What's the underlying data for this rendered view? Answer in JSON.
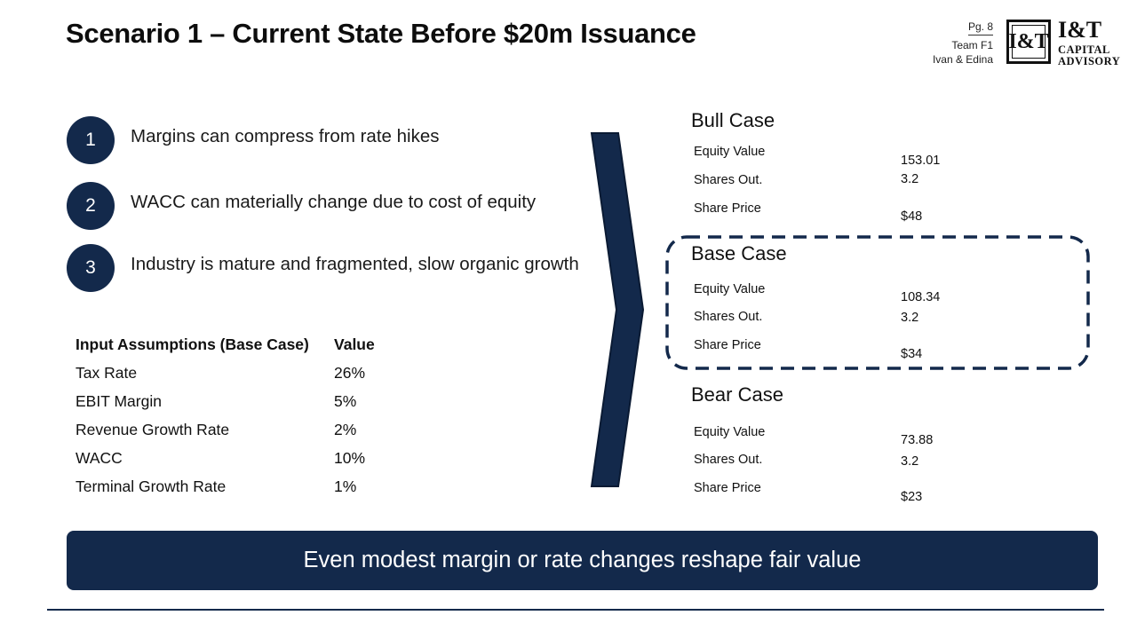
{
  "title": "Scenario 1 – Current State Before $20m Issuance",
  "meta": {
    "page": "Pg. 8",
    "team": "Team F1",
    "authors": "Ivan & Edina"
  },
  "logo": {
    "mark": "I&T",
    "name_line1": "I&T",
    "name_line2": "CAPITAL",
    "name_line3": "ADVISORY"
  },
  "points": [
    {
      "number": "1",
      "text": "Margins can compress from rate hikes"
    },
    {
      "number": "2",
      "text": "WACC can materially change due to cost of equity"
    },
    {
      "number": "3",
      "text": "Industry is mature and fragmented, slow organic growth"
    }
  ],
  "assumptions": {
    "header": {
      "label": "Input Assumptions (Base Case)",
      "value": "Value"
    },
    "rows": [
      {
        "label": "Tax Rate",
        "value": "26%"
      },
      {
        "label": "EBIT Margin",
        "value": "5%"
      },
      {
        "label": "Revenue Growth Rate",
        "value": "2%"
      },
      {
        "label": "WACC",
        "value": "10%"
      },
      {
        "label": "Terminal Growth Rate",
        "value": "1%"
      }
    ]
  },
  "cases": [
    {
      "title": "Bull Case",
      "equity_label": "Equity Value",
      "equity_value": "153.01",
      "shares_label": "Shares Out.",
      "shares_value": "3.2",
      "price_label": "Share Price",
      "price_value": "$48"
    },
    {
      "title": "Base Case",
      "equity_label": "Equity Value",
      "equity_value": "108.34",
      "shares_label": "Shares Out.",
      "shares_value": "3.2",
      "price_label": "Share Price",
      "price_value": "$34"
    },
    {
      "title": "Bear Case",
      "equity_label": "Equity Value",
      "equity_value": "73.88",
      "shares_label": "Shares Out.",
      "shares_value": "3.2",
      "price_label": "Share Price",
      "price_value": "$23"
    }
  ],
  "banner": "Even modest margin or rate changes reshape fair value",
  "colors": {
    "navy": "#13294b",
    "text": "#111111"
  }
}
